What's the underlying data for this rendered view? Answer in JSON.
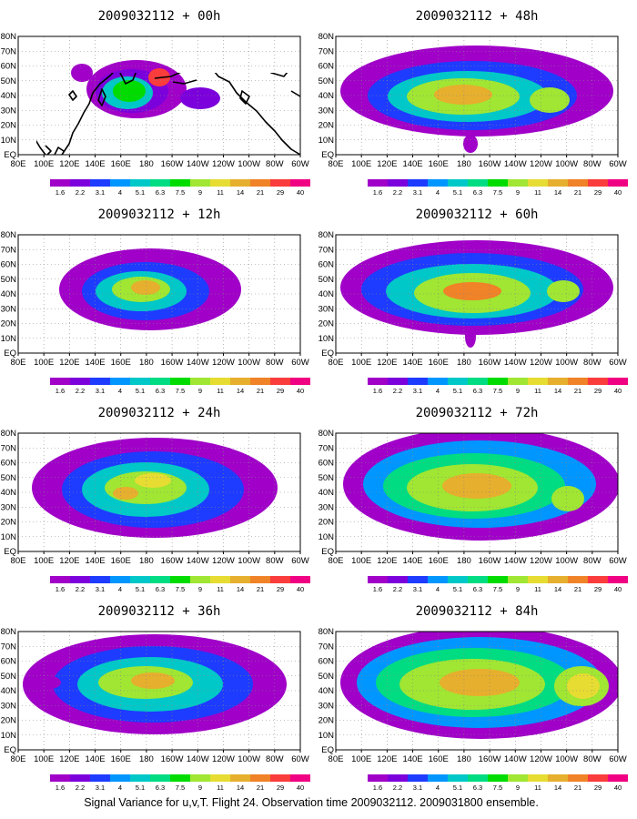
{
  "caption": "Signal Variance for u,v,T. Flight 24. Observation time 2009032112. 2009031800 ensemble.",
  "colorbar": {
    "labels": [
      "1.6",
      "2.2",
      "3.1",
      "4",
      "5.1",
      "6.3",
      "7.5",
      "9",
      "11",
      "14",
      "21",
      "29",
      "40"
    ],
    "colors": [
      "#a000c8",
      "#7b00dc",
      "#1e3cff",
      "#0096ff",
      "#00c8c8",
      "#00dc82",
      "#00dc00",
      "#a0e632",
      "#e6dc32",
      "#e6af2d",
      "#f08228",
      "#fa3c3c",
      "#f00082"
    ]
  },
  "x_tick_labels": [
    "80E",
    "100E",
    "120E",
    "140E",
    "160E",
    "180",
    "160W",
    "140W",
    "120W",
    "100W",
    "80W",
    "60W"
  ],
  "y_tick_labels": [
    "EQ",
    "10N",
    "20N",
    "30N",
    "40N",
    "50N",
    "60N",
    "70N",
    "80N"
  ],
  "panels": [
    {
      "title": "2009032112 + 00h",
      "lead_hours": 0
    },
    {
      "title": "2009032112 + 48h",
      "lead_hours": 48
    },
    {
      "title": "2009032112 + 12h",
      "lead_hours": 12
    },
    {
      "title": "2009032112 + 60h",
      "lead_hours": 60
    },
    {
      "title": "2009032112 + 24h",
      "lead_hours": 24
    },
    {
      "title": "2009032112 + 72h",
      "lead_hours": 72
    },
    {
      "title": "2009032112 + 36h",
      "lead_hours": 36
    },
    {
      "title": "2009032112 + 84h",
      "lead_hours": 84
    }
  ],
  "map_extent": {
    "lon": [
      "80E",
      "60W"
    ],
    "lat": [
      "EQ",
      "80N"
    ]
  }
}
